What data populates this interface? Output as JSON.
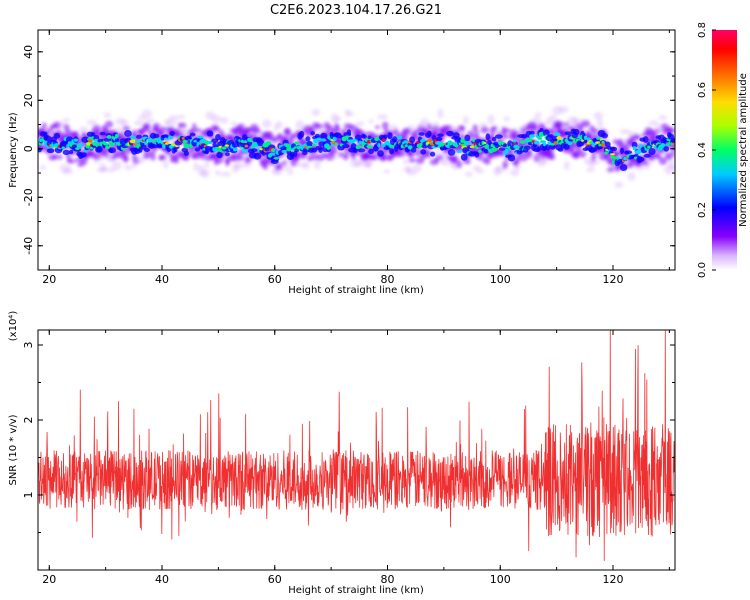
{
  "title": "C2E6.2023.104.17.26.G21",
  "colors": {
    "snr_line": "#f03030",
    "colormap": [
      "#ffffff",
      "#8800ff",
      "#0000ff",
      "#00ccff",
      "#00ff66",
      "#aaff00",
      "#ffdd00",
      "#ff6600",
      "#ff0000",
      "#ff0066"
    ]
  },
  "chart_data": [
    {
      "type": "heatmap",
      "xlabel": "Height of straight line (km)",
      "ylabel": "Frequency (Hz)",
      "xlim": [
        18,
        131
      ],
      "ylim": [
        -50,
        49
      ],
      "x_ticks": [
        "20",
        "40",
        "60",
        "80",
        "100",
        "120"
      ],
      "x_tick_values": [
        20,
        40,
        60,
        80,
        100,
        120
      ],
      "y_ticks": [
        "-40",
        "-20",
        "0",
        "20",
        "40"
      ],
      "y_tick_values": [
        -40,
        -20,
        0,
        20,
        40
      ],
      "ridge": {
        "x": [
          18,
          22,
          26,
          30,
          34,
          38,
          42,
          46,
          50,
          54,
          58,
          60,
          62,
          66,
          70,
          74,
          78,
          82,
          86,
          90,
          94,
          98,
          102,
          106,
          110,
          114,
          118,
          120,
          122,
          126,
          131
        ],
        "y": [
          3,
          2,
          1,
          3,
          2,
          3,
          2,
          3,
          1,
          2,
          1,
          -2,
          0,
          2,
          3,
          3,
          2,
          2,
          2,
          2,
          1,
          1,
          0,
          3,
          4,
          4,
          2,
          -3,
          -4,
          1,
          2
        ]
      },
      "colorbar": {
        "label": "Normalized spectral amplitude",
        "range": [
          0,
          0.8
        ],
        "ticks": [
          "0.0",
          "0.2",
          "0.4",
          "0.6",
          "0.8"
        ],
        "tick_values": [
          0,
          0.2,
          0.4,
          0.6,
          0.8
        ]
      }
    },
    {
      "type": "line",
      "xlabel": "Height of straight line (km)",
      "ylabel": "SNR (10 * v/v)",
      "y_multiplier": "(x10⁴)",
      "xlim": [
        18,
        131
      ],
      "ylim": [
        0,
        3.2
      ],
      "x_ticks": [
        "20",
        "40",
        "60",
        "80",
        "100",
        "120"
      ],
      "x_tick_values": [
        20,
        40,
        60,
        80,
        100,
        120
      ],
      "y_ticks": [
        "1",
        "2",
        "3"
      ],
      "y_tick_values": [
        1,
        2,
        3
      ],
      "series": [
        {
          "mean": 1.2,
          "spread": 0.4
        }
      ]
    }
  ]
}
